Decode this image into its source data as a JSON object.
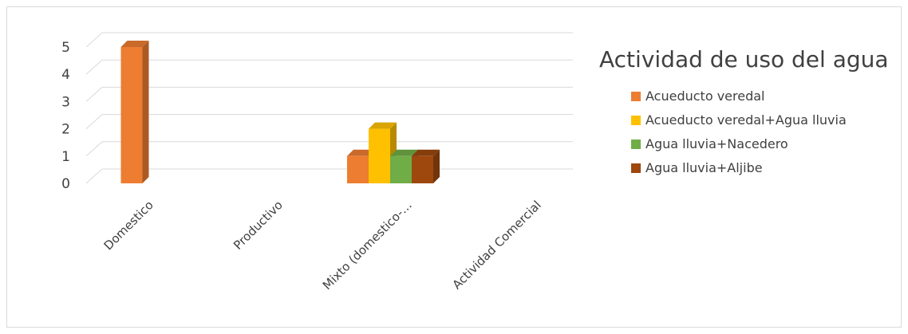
{
  "chart_data": {
    "type": "bar",
    "title": "Actividad de uso del agua",
    "xlabel": "",
    "ylabel": "",
    "categories": [
      "Domestico",
      "Productivo",
      "Mixto (domestico-…",
      "Actividad Comercial"
    ],
    "ylim": [
      0,
      5
    ],
    "yticks": [
      "0",
      "1",
      "2",
      "3",
      "4",
      "5"
    ],
    "grid": true,
    "legend": "right",
    "style": "3d-column",
    "series": [
      {
        "name": "Acueducto veredal",
        "color": "#ED7D31",
        "values": [
          5,
          0,
          1,
          0
        ]
      },
      {
        "name": "Acueducto veredal+Agua lluvia",
        "color": "#FFC000",
        "values": [
          0,
          0,
          2,
          0
        ]
      },
      {
        "name": "Agua lluvia+Nacedero",
        "color": "#70AD47",
        "values": [
          0,
          0,
          1,
          0
        ]
      },
      {
        "name": "Agua lluvia+Aljibe",
        "color": "#9E480E",
        "values": [
          0,
          0,
          1,
          0
        ]
      }
    ]
  }
}
